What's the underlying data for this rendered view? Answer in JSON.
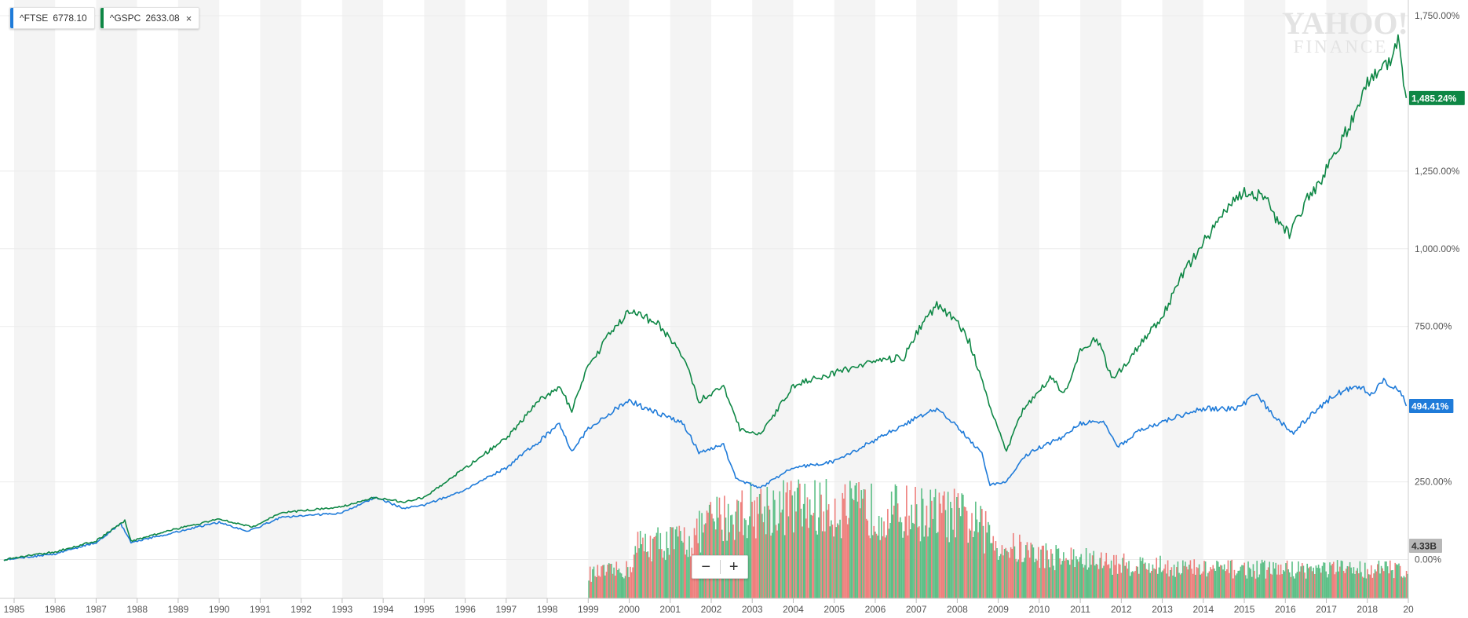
{
  "legend": [
    {
      "symbol": "^FTSE",
      "value": "6778.10",
      "color": "#1f7bd9",
      "closable": false
    },
    {
      "symbol": "^GSPC",
      "value": "2633.08",
      "color": "#0e8745",
      "closable": true,
      "close_icon": "×"
    }
  ],
  "watermark": {
    "line1": "YAHOO!",
    "line2": "FINANCE"
  },
  "zoom": {
    "out_label": "−",
    "in_label": "+"
  },
  "colors": {
    "ftse": "#1f7bd9",
    "gspc": "#0e8745",
    "vol_up": "#5cbf86",
    "vol_down": "#ee7f7c",
    "band": "#f4f4f4"
  },
  "chart_data": {
    "type": "line",
    "x_ticks": [
      "1985",
      "1986",
      "1987",
      "1988",
      "1989",
      "1990",
      "1991",
      "1992",
      "1993",
      "1994",
      "1995",
      "1996",
      "1997",
      "1998",
      "1999",
      "2000",
      "2001",
      "2002",
      "2003",
      "2004",
      "2005",
      "2006",
      "2007",
      "2008",
      "2009",
      "2010",
      "2011",
      "2012",
      "2013",
      "2014",
      "2015",
      "2016",
      "2017",
      "2018",
      "20"
    ],
    "xlim": [
      1985.0,
      2019.0
    ],
    "y_ticks": [
      "0.00%",
      "250.00%",
      "750.00%",
      "1,000.00%",
      "1,250.00%",
      "1,750.00%"
    ],
    "y_tick_values": [
      0,
      250,
      750,
      1000,
      1250,
      1750
    ],
    "ylim": [
      -125,
      1760
    ],
    "grid": true,
    "series": [
      {
        "name": "^FTSE",
        "color": "#1f7bd9",
        "last_label": "494.41%",
        "points": [
          [
            1984.75,
            0
          ],
          [
            1986,
            18
          ],
          [
            1987,
            55
          ],
          [
            1987.6,
            115
          ],
          [
            1987.85,
            55
          ],
          [
            1989,
            90
          ],
          [
            1990,
            120
          ],
          [
            1990.7,
            90
          ],
          [
            1991.5,
            135
          ],
          [
            1993,
            150
          ],
          [
            1993.8,
            200
          ],
          [
            1994.5,
            165
          ],
          [
            1995,
            175
          ],
          [
            1996,
            225
          ],
          [
            1997,
            295
          ],
          [
            1997.8,
            380
          ],
          [
            1998.3,
            440
          ],
          [
            1998.6,
            345
          ],
          [
            1999,
            420
          ],
          [
            1999.5,
            470
          ],
          [
            2000,
            510
          ],
          [
            2000.7,
            470
          ],
          [
            2001.3,
            440
          ],
          [
            2001.7,
            345
          ],
          [
            2002.3,
            370
          ],
          [
            2002.6,
            260
          ],
          [
            2003.2,
            230
          ],
          [
            2003.6,
            265
          ],
          [
            2004,
            295
          ],
          [
            2005,
            315
          ],
          [
            2006,
            385
          ],
          [
            2007,
            455
          ],
          [
            2007.5,
            485
          ],
          [
            2008,
            430
          ],
          [
            2008.6,
            340
          ],
          [
            2008.8,
            240
          ],
          [
            2009.2,
            250
          ],
          [
            2009.6,
            330
          ],
          [
            2010,
            360
          ],
          [
            2010.6,
            395
          ],
          [
            2011,
            440
          ],
          [
            2011.6,
            440
          ],
          [
            2011.9,
            360
          ],
          [
            2012.5,
            420
          ],
          [
            2013.5,
            465
          ],
          [
            2014,
            485
          ],
          [
            2014.8,
            485
          ],
          [
            2015.3,
            530
          ],
          [
            2015.8,
            450
          ],
          [
            2016.2,
            410
          ],
          [
            2016.7,
            475
          ],
          [
            2017.2,
            530
          ],
          [
            2017.8,
            560
          ],
          [
            2018.1,
            530
          ],
          [
            2018.4,
            575
          ],
          [
            2018.8,
            545
          ],
          [
            2018.95,
            494
          ]
        ]
      },
      {
        "name": "^GSPC",
        "color": "#0e8745",
        "last_label": "1,485.24%",
        "points": [
          [
            1984.75,
            0
          ],
          [
            1986,
            25
          ],
          [
            1987,
            60
          ],
          [
            1987.7,
            125
          ],
          [
            1987.85,
            60
          ],
          [
            1989,
            100
          ],
          [
            1990,
            130
          ],
          [
            1990.8,
            105
          ],
          [
            1991.5,
            150
          ],
          [
            1993,
            170
          ],
          [
            1993.8,
            200
          ],
          [
            1994.5,
            185
          ],
          [
            1995,
            200
          ],
          [
            1996,
            295
          ],
          [
            1997,
            390
          ],
          [
            1997.8,
            510
          ],
          [
            1998.3,
            555
          ],
          [
            1998.6,
            480
          ],
          [
            1999,
            620
          ],
          [
            1999.5,
            720
          ],
          [
            2000,
            800
          ],
          [
            2000.7,
            760
          ],
          [
            2001.3,
            660
          ],
          [
            2001.7,
            510
          ],
          [
            2002.3,
            560
          ],
          [
            2002.7,
            420
          ],
          [
            2003.2,
            400
          ],
          [
            2003.7,
            500
          ],
          [
            2004,
            560
          ],
          [
            2005,
            600
          ],
          [
            2006,
            640
          ],
          [
            2006.7,
            650
          ],
          [
            2007,
            730
          ],
          [
            2007.5,
            820
          ],
          [
            2007.9,
            780
          ],
          [
            2008.3,
            700
          ],
          [
            2008.7,
            530
          ],
          [
            2009.2,
            350
          ],
          [
            2009.6,
            480
          ],
          [
            2010,
            540
          ],
          [
            2010.3,
            590
          ],
          [
            2010.6,
            530
          ],
          [
            2011,
            670
          ],
          [
            2011.4,
            710
          ],
          [
            2011.8,
            580
          ],
          [
            2012.5,
            700
          ],
          [
            2013,
            780
          ],
          [
            2013.5,
            920
          ],
          [
            2014,
            1020
          ],
          [
            2014.5,
            1120
          ],
          [
            2015,
            1180
          ],
          [
            2015.5,
            1170
          ],
          [
            2015.8,
            1090
          ],
          [
            2016.1,
            1050
          ],
          [
            2016.5,
            1150
          ],
          [
            2017,
            1250
          ],
          [
            2017.5,
            1380
          ],
          [
            2018,
            1540
          ],
          [
            2018.3,
            1560
          ],
          [
            2018.6,
            1610
          ],
          [
            2018.75,
            1690
          ],
          [
            2018.85,
            1580
          ],
          [
            2018.95,
            1485
          ]
        ]
      }
    ],
    "volume": {
      "start": 1999.0,
      "end": 2019.0,
      "last_label": "4.33B",
      "profile": [
        [
          1999.0,
          0.25
        ],
        [
          2000.0,
          0.3
        ],
        [
          2000.2,
          0.55
        ],
        [
          2001.5,
          0.6
        ],
        [
          2002.0,
          0.8
        ],
        [
          2003,
          0.92
        ],
        [
          2004,
          0.95
        ],
        [
          2005,
          0.92
        ],
        [
          2006,
          0.9
        ],
        [
          2007,
          0.88
        ],
        [
          2008,
          0.85
        ],
        [
          2008.5,
          0.75
        ],
        [
          2009,
          0.55
        ],
        [
          2010,
          0.45
        ],
        [
          2011,
          0.4
        ],
        [
          2012,
          0.35
        ],
        [
          2013,
          0.33
        ],
        [
          2014,
          0.3
        ],
        [
          2015,
          0.3
        ],
        [
          2016,
          0.3
        ],
        [
          2017,
          0.3
        ],
        [
          2018,
          0.3
        ],
        [
          2019,
          0.3
        ]
      ]
    }
  }
}
